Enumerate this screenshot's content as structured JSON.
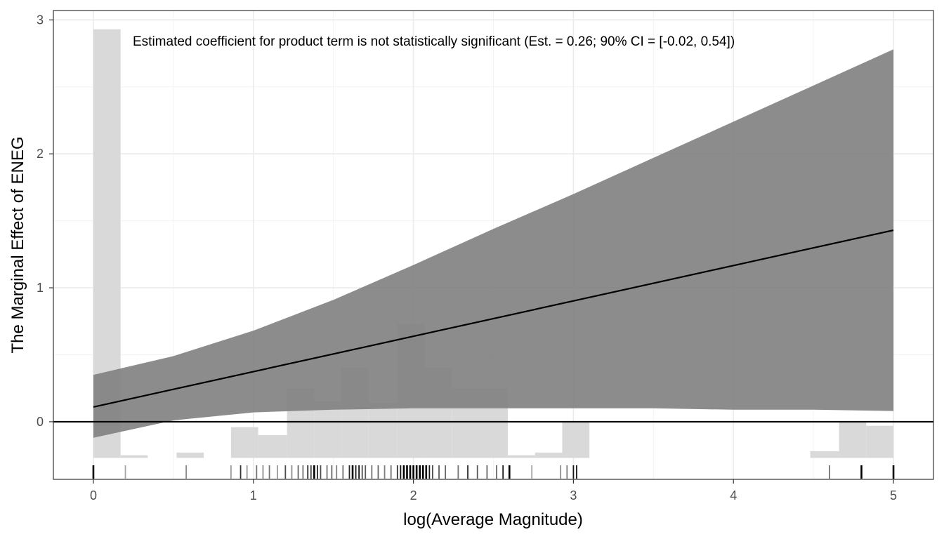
{
  "chart_data": {
    "type": "line",
    "xlabel": "log(Average Magnitude)",
    "ylabel": "The Marginal Effect of ENEG",
    "annotation": "Estimated coefficient for product term is not statistically significant (Est. = 0.26; 90% CI = [-0.02, 0.54])",
    "xlim": [
      -0.25,
      5.25
    ],
    "ylim": [
      -0.43,
      3.07
    ],
    "x_ticks": [
      0,
      1,
      2,
      3,
      4,
      5
    ],
    "y_ticks": [
      0,
      1,
      2,
      3
    ],
    "x_tick_labels": [
      "0",
      "1",
      "2",
      "3",
      "4",
      "5"
    ],
    "y_tick_labels": [
      "0",
      "1",
      "2",
      "3"
    ],
    "grid": true,
    "reference_line_y": 0,
    "marginal_effect_line": {
      "x": [
        0,
        5
      ],
      "y": [
        0.11,
        1.43
      ]
    },
    "confidence_band": {
      "x": [
        0,
        0.5,
        1,
        1.5,
        2,
        2.5,
        3,
        3.5,
        4,
        4.5,
        5
      ],
      "lower": [
        -0.12,
        0.01,
        0.07,
        0.09,
        0.1,
        0.1,
        0.1,
        0.1,
        0.09,
        0.09,
        0.08
      ],
      "upper": [
        0.35,
        0.49,
        0.68,
        0.91,
        1.17,
        1.44,
        1.7,
        1.97,
        2.24,
        2.51,
        2.78
      ]
    },
    "histogram": {
      "base": -0.27,
      "bins": [
        {
          "x0": 0.0,
          "x1": 0.17,
          "top": 2.93
        },
        {
          "x0": 0.17,
          "x1": 0.34,
          "top": -0.25
        },
        {
          "x0": 0.52,
          "x1": 0.69,
          "top": -0.23
        },
        {
          "x0": 0.86,
          "x1": 1.03,
          "top": -0.04
        },
        {
          "x0": 1.03,
          "x1": 1.21,
          "top": -0.1
        },
        {
          "x0": 1.21,
          "x1": 1.38,
          "top": 0.25
        },
        {
          "x0": 1.38,
          "x1": 1.55,
          "top": 0.15
        },
        {
          "x0": 1.55,
          "x1": 1.72,
          "top": 0.4
        },
        {
          "x0": 1.72,
          "x1": 1.9,
          "top": 0.14
        },
        {
          "x0": 1.9,
          "x1": 2.07,
          "top": 0.73
        },
        {
          "x0": 2.07,
          "x1": 2.24,
          "top": 0.4
        },
        {
          "x0": 2.24,
          "x1": 2.41,
          "top": 0.25
        },
        {
          "x0": 2.41,
          "x1": 2.59,
          "top": 0.25
        },
        {
          "x0": 2.59,
          "x1": 2.76,
          "top": -0.25
        },
        {
          "x0": 2.76,
          "x1": 2.93,
          "top": -0.23
        },
        {
          "x0": 2.93,
          "x1": 3.1,
          "top": 0.0
        },
        {
          "x0": 4.48,
          "x1": 4.66,
          "top": -0.22
        },
        {
          "x0": 4.66,
          "x1": 4.83,
          "top": 0.0
        },
        {
          "x0": 4.83,
          "x1": 5.0,
          "top": -0.03
        }
      ]
    },
    "rug": {
      "x": [
        0,
        0.2,
        0.58,
        0.86,
        0.92,
        0.96,
        1.02,
        1.06,
        1.1,
        1.15,
        1.2,
        1.24,
        1.28,
        1.31,
        1.34,
        1.36,
        1.38,
        1.4,
        1.42,
        1.46,
        1.49,
        1.52,
        1.56,
        1.6,
        1.62,
        1.64,
        1.66,
        1.68,
        1.7,
        1.74,
        1.78,
        1.82,
        1.86,
        1.9,
        1.92,
        1.94,
        1.96,
        1.98,
        2.0,
        2.02,
        2.04,
        2.06,
        2.08,
        2.1,
        2.12,
        2.16,
        2.2,
        2.28,
        2.34,
        2.4,
        2.46,
        2.52,
        2.56,
        2.6,
        2.74,
        2.92,
        2.96,
        3.0,
        3.02,
        4.6,
        4.8,
        5.0
      ],
      "strength": [
        1,
        0.35,
        0.45,
        0.4,
        0.8,
        0.4,
        0.55,
        0.45,
        0.55,
        0.4,
        0.7,
        0.45,
        0.6,
        0.55,
        0.85,
        0.75,
        1,
        0.85,
        0.7,
        0.55,
        0.6,
        0.5,
        0.55,
        0.85,
        1,
        0.9,
        0.95,
        0.7,
        0.65,
        0.55,
        0.6,
        0.5,
        0.55,
        0.8,
        0.95,
        1,
        1,
        1,
        1,
        1,
        1,
        1,
        1,
        0.9,
        0.7,
        0.65,
        0.6,
        0.55,
        0.85,
        0.65,
        0.6,
        0.6,
        0.9,
        1,
        0.35,
        0.45,
        0.5,
        0.9,
        0.9,
        0.55,
        1,
        1
      ]
    },
    "colors": {
      "band": "#808080",
      "histogram": "#d9d9d9",
      "line": "#000000",
      "grid_major": "#ebebeb",
      "grid_minor": "#f3f3f3",
      "panel_border": "#333333",
      "tick_text": "#4d4d4d"
    }
  }
}
